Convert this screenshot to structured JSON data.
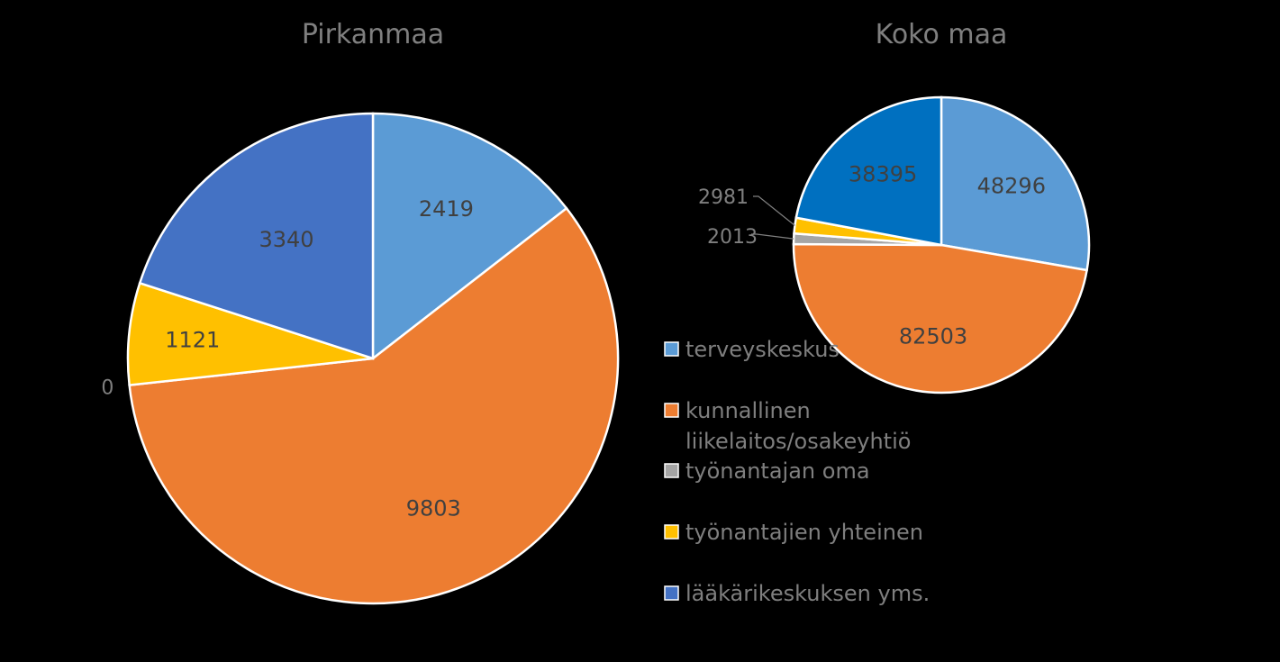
{
  "chart_data": [
    {
      "type": "pie",
      "title": "Pirkanmaa",
      "categories": [
        "terveyskeskus",
        "kunnallinen liikelaitos/osakeyhtiö",
        "työnantajan oma",
        "työnantajien yhteinen",
        "lääkärikeskuksen yms."
      ],
      "values": [
        2419,
        9803,
        0,
        1121,
        3340
      ],
      "data_labels": [
        "2419",
        "9803",
        "0",
        "1121",
        "3340"
      ]
    },
    {
      "type": "pie",
      "title": "Koko maa",
      "categories": [
        "terveyskeskus",
        "kunnallinen liikelaitos/osakeyhtiö",
        "työnantajan oma",
        "työnantajien yhteinen",
        "lääkärikeskuksen yms."
      ],
      "values": [
        48296,
        82503,
        2013,
        2981,
        38395
      ],
      "data_labels": [
        "48296",
        "82503",
        "2013",
        "2981",
        "38395"
      ]
    }
  ],
  "legend": {
    "placement": "bottom-right",
    "items": [
      {
        "lines": [
          "terveyskeskus"
        ],
        "color": "#5b9bd5"
      },
      {
        "lines": [
          "kunnallinen",
          "liikelaitos/osakeyhtiö"
        ],
        "color": "#ed7d31"
      },
      {
        "lines": [
          "työnantajan oma"
        ],
        "color": "#a5a5a5"
      },
      {
        "lines": [
          "työnantajien yhteinen"
        ],
        "color": "#ffc000"
      },
      {
        "lines": [
          "lääkärikeskuksen yms."
        ],
        "color": "#4472c4"
      }
    ]
  },
  "colors": {
    "series_pirkanmaa": [
      "#5b9bd5",
      "#ed7d31",
      "#a5a5a5",
      "#ffc000",
      "#4472c4"
    ],
    "series_koko_maa": [
      "#5b9bd5",
      "#ed7d31",
      "#a5a5a5",
      "#ffc000",
      "#0070c0"
    ],
    "background": "#000000",
    "slice_border": "#ffffff"
  }
}
